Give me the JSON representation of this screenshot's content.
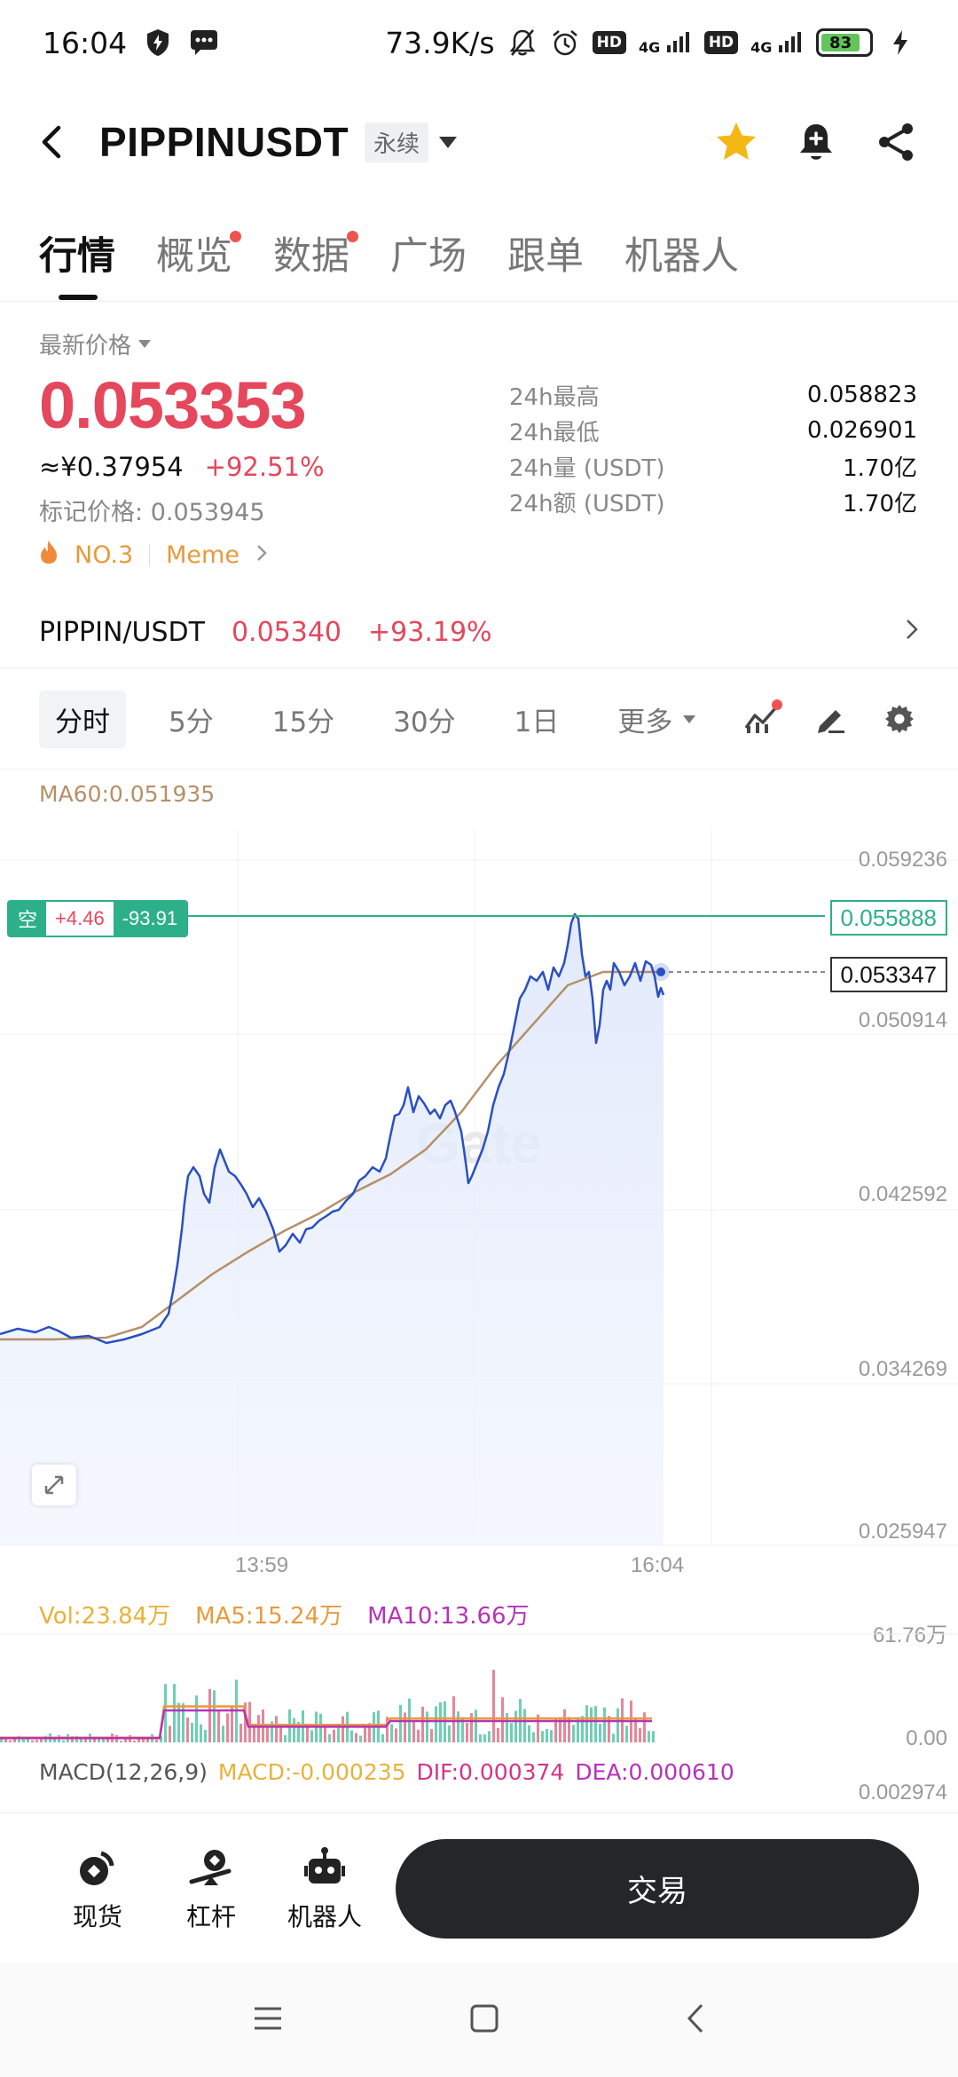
{
  "status_bar": {
    "time": "16:04",
    "net_speed": "73.9K/s",
    "hd1": "HD",
    "sig1": "4G",
    "hd2": "HD",
    "sig2": "4G",
    "battery": "83"
  },
  "header": {
    "symbol": "PIPPINUSDT",
    "contract_tag": "永续"
  },
  "tabs": [
    {
      "label": "行情",
      "active": true,
      "dot": false
    },
    {
      "label": "概览",
      "active": false,
      "dot": true
    },
    {
      "label": "数据",
      "active": false,
      "dot": true
    },
    {
      "label": "广场",
      "active": false,
      "dot": false
    },
    {
      "label": "跟单",
      "active": false,
      "dot": false
    },
    {
      "label": "机器人",
      "active": false,
      "dot": false
    }
  ],
  "price": {
    "latest_label": "最新价格",
    "latest": "0.053353",
    "cny": "≈¥0.37954",
    "change": "+92.51%",
    "mark_label": "标记价格:",
    "mark_value": "0.053945",
    "rank": "NO.3",
    "category": "Meme"
  },
  "stats": [
    {
      "k": "24h最高",
      "v": "0.058823"
    },
    {
      "k": "24h最低",
      "v": "0.026901"
    },
    {
      "k": "24h量 (USDT)",
      "v": "1.70亿"
    },
    {
      "k": "24h额 (USDT)",
      "v": "1.70亿"
    }
  ],
  "spot_pair": {
    "pair": "PIPPIN/USDT",
    "price": "0.05340",
    "change": "+93.19%"
  },
  "timeframes": {
    "items": [
      "分时",
      "5分",
      "15分",
      "30分",
      "1日"
    ],
    "more": "更多"
  },
  "main_chart": {
    "ma60_label": "MA60:0.051935",
    "y_labels": [
      "0.059236",
      "0.050914",
      "0.042592",
      "0.034269",
      "0.025947"
    ],
    "x_labels": [
      "13:59",
      "16:04"
    ],
    "position_tag": {
      "side": "空",
      "pnl": "+4.46",
      "pnl_pct": "-93.91"
    },
    "position_price": "0.055888",
    "current_price": "0.053347",
    "watermark": "Gate"
  },
  "volume": {
    "vol": "Vol:23.84万",
    "ma5": "MA5:15.24万",
    "ma10": "MA10:13.66万",
    "y_top": "61.76万",
    "y_bottom": "0.00"
  },
  "macd": {
    "name": "MACD(12,26,9)",
    "macd": "MACD:-0.000235",
    "dif": "DIF:0.000374",
    "dea": "DEA:0.000610",
    "y_top": "0.002974"
  },
  "bottom_nav": [
    {
      "label": "现货",
      "icon": "spot-icon"
    },
    {
      "label": "杠杆",
      "icon": "leverage-icon"
    },
    {
      "label": "机器人",
      "icon": "robot-icon"
    }
  ],
  "trade_button": "交易",
  "colors": {
    "up": "#e5475c",
    "down": "#2db08a",
    "line": "#2a4fc2",
    "ma": "#b59067"
  }
}
